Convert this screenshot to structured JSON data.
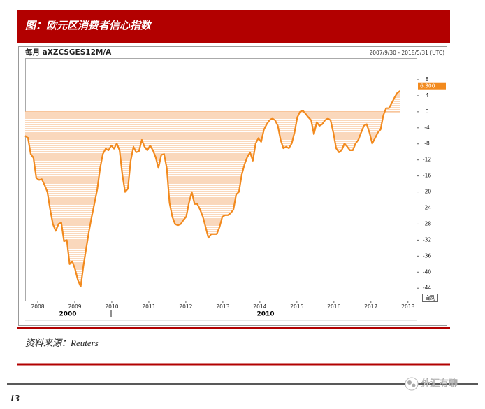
{
  "header": {
    "title": "图：欧元区消费者信心指数"
  },
  "chart_data": {
    "type": "line",
    "title": "每月 aXZCSGES12M/A",
    "subtitle": "2007/9/30 - 2018/5/31 (UTC)",
    "annotations": [
      "2000",
      "2010"
    ],
    "button": "自动",
    "color": "#f28a1e",
    "fill_color": "#f6b27a",
    "current_value": 6.3,
    "current_label": "6.300",
    "x": [
      2007.66,
      2007.735,
      2007.81,
      2007.885,
      2007.96,
      2008.035,
      2008.11,
      2008.185,
      2008.26,
      2008.335,
      2008.41,
      2008.485,
      2008.56,
      2008.635,
      2008.71,
      2008.785,
      2008.86,
      2008.935,
      2009.01,
      2009.085,
      2009.16,
      2009.235,
      2009.31,
      2009.385,
      2009.46,
      2009.535,
      2009.61,
      2009.685,
      2009.76,
      2009.835,
      2009.91,
      2009.985,
      2010.06,
      2010.135,
      2010.21,
      2010.285,
      2010.36,
      2010.435,
      2010.51,
      2010.585,
      2010.66,
      2010.735,
      2010.81,
      2010.885,
      2010.96,
      2011.035,
      2011.11,
      2011.185,
      2011.26,
      2011.335,
      2011.41,
      2011.485,
      2011.56,
      2011.635,
      2011.71,
      2011.785,
      2011.86,
      2011.935,
      2012.01,
      2012.085,
      2012.16,
      2012.235,
      2012.31,
      2012.385,
      2012.46,
      2012.535,
      2012.61,
      2012.685,
      2012.76,
      2012.835,
      2012.91,
      2012.985,
      2013.06,
      2013.135,
      2013.21,
      2013.285,
      2013.36,
      2013.435,
      2013.51,
      2013.585,
      2013.66,
      2013.735,
      2013.81,
      2013.885,
      2013.96,
      2014.035,
      2014.11,
      2014.185,
      2014.26,
      2014.335,
      2014.41,
      2014.485,
      2014.56,
      2014.635,
      2014.71,
      2014.785,
      2014.86,
      2014.935,
      2015.01,
      2015.085,
      2015.16,
      2015.235,
      2015.31,
      2015.385,
      2015.46,
      2015.535,
      2015.61,
      2015.685,
      2015.76,
      2015.835,
      2015.91,
      2015.985,
      2016.06,
      2016.135,
      2016.21,
      2016.285,
      2016.36,
      2016.435,
      2016.51,
      2016.585,
      2016.66,
      2016.735,
      2016.81,
      2016.885,
      2016.96,
      2017.035,
      2017.11,
      2017.185,
      2017.26,
      2017.335,
      2017.41,
      2017.485,
      2017.56,
      2017.635,
      2017.71,
      2017.785
    ],
    "values": [
      -6,
      -6.5,
      -10.5,
      -11.5,
      -16.5,
      -17,
      -16.8,
      -18.3,
      -20,
      -24.4,
      -28,
      -29.7,
      -28,
      -27.6,
      -32.3,
      -32,
      -38,
      -37.3,
      -39.3,
      -42,
      -43.6,
      -38.4,
      -34,
      -29.7,
      -26,
      -22.7,
      -19.2,
      -14,
      -10.5,
      -9.2,
      -9.6,
      -8.4,
      -9.2,
      -7.9,
      -9.6,
      -15.7,
      -20,
      -19.2,
      -12.2,
      -8.7,
      -10.1,
      -9.8,
      -7,
      -8.7,
      -9.6,
      -8.4,
      -9.6,
      -11.3,
      -14,
      -10.8,
      -10.5,
      -14,
      -22.7,
      -26.2,
      -28,
      -28.3,
      -28,
      -27,
      -26.2,
      -22.7,
      -20,
      -23,
      -23,
      -24.4,
      -26.2,
      -28.8,
      -31.4,
      -30.5,
      -30.5,
      -30.5,
      -28.8,
      -26.2,
      -25.8,
      -25.8,
      -25.3,
      -24.4,
      -20.6,
      -20,
      -15.7,
      -13.1,
      -11.3,
      -10.1,
      -12.2,
      -7.9,
      -6.6,
      -7.5,
      -4.4,
      -3.1,
      -2.1,
      -1.7,
      -2.1,
      -3.5,
      -7,
      -9.1,
      -8.7,
      -9.1,
      -7.9,
      -5.2,
      -1.4,
      0,
      0.3,
      -0.5,
      -1.4,
      -2.1,
      -5.6,
      -2.6,
      -3.5,
      -3.1,
      -2.1,
      -1.7,
      -2.1,
      -5.2,
      -9.1,
      -10.1,
      -9.6,
      -7.9,
      -8.7,
      -9.6,
      -9.6,
      -7.9,
      -7,
      -5.2,
      -3.5,
      -3.1,
      -5.2,
      -7.9,
      -6.6,
      -5.2,
      -4.4,
      -0.9,
      0.9,
      0.9,
      2.1,
      3.5,
      4.7,
      5.2
    ],
    "xlim": [
      2007.66,
      2018.25
    ],
    "xticks": [
      2008,
      2009,
      2010,
      2011,
      2012,
      2013,
      2014,
      2015,
      2016,
      2017,
      2018
    ],
    "ylim": [
      -47.1,
      13.4
    ],
    "yticks": [
      8,
      4,
      0,
      -4,
      -8,
      -12,
      -16,
      -20,
      -24,
      -28,
      -32,
      -36,
      -40,
      -44
    ],
    "axis_side": "right"
  },
  "footer": {
    "source": "资料来源：Reuters",
    "page_number": "13",
    "watermark": "外汇有聊"
  }
}
